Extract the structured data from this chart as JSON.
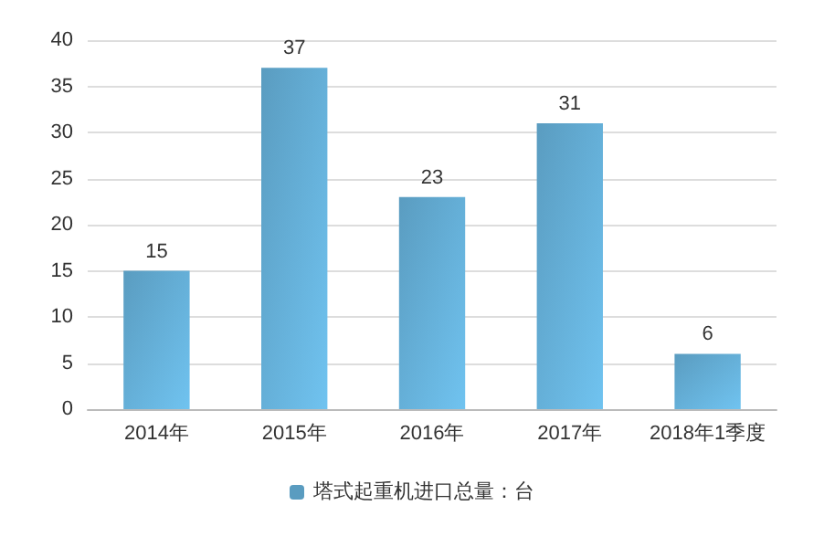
{
  "chart_data": {
    "type": "bar",
    "categories": [
      "2014年",
      "2015年",
      "2016年",
      "2017年",
      "2018年1季度"
    ],
    "series": [
      {
        "name": "塔式起重机进口总量：台",
        "color": "#5a9cc0",
        "values": [
          15,
          37,
          23,
          31,
          6
        ]
      }
    ],
    "ylim": [
      0,
      40
    ],
    "yticks": [
      0,
      5,
      10,
      15,
      20,
      25,
      30,
      35,
      40
    ],
    "grid": "y",
    "data_labels": true,
    "legend": "bottom"
  }
}
